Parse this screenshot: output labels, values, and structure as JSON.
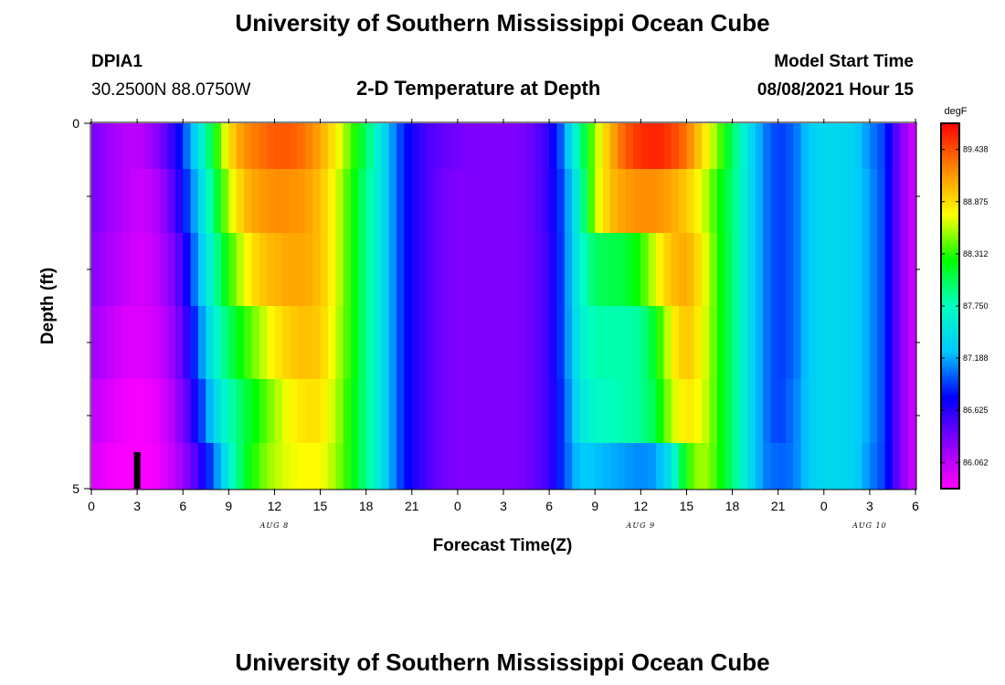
{
  "header": {
    "title": "University of Southern Mississippi Ocean Cube",
    "station": "DPIA1",
    "location": "30.2500N  88.0750W",
    "plot_title": "2-D Temperature at Depth",
    "model_start_label": "Model Start Time",
    "model_start_value": "08/08/2021 Hour 15"
  },
  "footer": {
    "title": "University of Southern Mississippi Ocean Cube"
  },
  "chart_data": {
    "type": "heatmap",
    "title": "2-D Temperature at Depth",
    "xlabel": "Forecast Time(Z)",
    "ylabel": "Depth (ft)",
    "colorbar_unit": "degF",
    "colorbar_ticks": [
      "89.438",
      "88.875",
      "88.312",
      "87.750",
      "87.188",
      "86.625",
      "86.062"
    ],
    "colorbar_range": [
      85.78,
      89.72
    ],
    "colors": [
      "#ff00ff",
      "#8800ff",
      "#0000ff",
      "#00c8ff",
      "#00ffc0",
      "#00ff00",
      "#ffff00",
      "#ff8800",
      "#ff0000"
    ],
    "x_tick_labels": [
      "0",
      "3",
      "6",
      "9",
      "12",
      "15",
      "18",
      "21",
      "0",
      "3",
      "6",
      "9",
      "12",
      "15",
      "18",
      "21",
      "0",
      "3",
      "6"
    ],
    "x_hours": [
      0,
      3,
      6,
      9,
      12,
      15,
      18,
      21,
      24,
      27,
      30,
      33,
      36,
      39,
      42,
      45,
      48,
      51,
      54
    ],
    "x_range": [
      0,
      54
    ],
    "day_labels": [
      {
        "text": "AUG 8",
        "hour": 12
      },
      {
        "text": "AUG 9",
        "hour": 36
      },
      {
        "text": "AUG 10",
        "hour": 51
      }
    ],
    "y_tick_labels": [
      "0",
      "5"
    ],
    "y_range": [
      0,
      5
    ],
    "y_minor_ticks": [
      1,
      2,
      3,
      4
    ],
    "marker": {
      "hour": 3,
      "depth_from": 4.5,
      "depth_to": 5
    },
    "depth_levels": [
      0.25,
      1.0,
      2.0,
      3.0,
      4.0,
      4.75
    ],
    "hours": [
      0,
      1,
      2,
      3,
      4,
      5,
      6,
      7,
      8,
      9,
      10,
      11,
      12,
      13,
      14,
      15,
      16,
      17,
      18,
      19,
      20,
      21,
      22,
      23,
      24,
      25,
      26,
      27,
      28,
      29,
      30,
      31,
      32,
      33,
      34,
      35,
      36,
      37,
      38,
      39,
      40,
      41,
      42,
      43,
      44,
      45,
      46,
      47,
      48,
      49,
      50,
      51,
      52,
      53,
      54
    ],
    "values": [
      [
        86.35,
        86.2,
        86.1,
        86.05,
        86.2,
        86.45,
        86.9,
        87.45,
        88.15,
        88.85,
        89.2,
        89.3,
        89.4,
        89.4,
        89.3,
        89.1,
        88.8,
        88.4,
        88.0,
        87.5,
        87.0,
        86.7,
        86.5,
        86.4,
        86.35,
        86.3,
        86.3,
        86.3,
        86.3,
        86.4,
        86.6,
        87.1,
        87.85,
        88.55,
        89.05,
        89.4,
        89.55,
        89.6,
        89.5,
        89.3,
        88.9,
        88.5,
        88.0,
        87.5,
        87.1,
        86.9,
        87.0,
        87.3,
        87.4,
        87.4,
        87.35,
        87.1,
        86.9,
        86.3,
        85.95
      ],
      [
        86.35,
        86.2,
        86.1,
        86.0,
        86.05,
        86.3,
        86.75,
        87.3,
        87.95,
        88.6,
        89.0,
        89.15,
        89.2,
        89.2,
        89.15,
        89.0,
        88.7,
        88.3,
        87.9,
        87.5,
        87.0,
        86.7,
        86.5,
        86.35,
        86.3,
        86.3,
        86.3,
        86.3,
        86.3,
        86.4,
        86.6,
        87.0,
        87.7,
        88.6,
        89.0,
        89.15,
        89.2,
        89.2,
        89.1,
        88.95,
        88.7,
        88.3,
        87.95,
        87.5,
        87.1,
        86.9,
        87.0,
        87.3,
        87.4,
        87.4,
        87.35,
        87.15,
        86.9,
        86.3,
        85.95
      ],
      [
        86.3,
        86.15,
        86.05,
        85.95,
        86.0,
        86.2,
        86.55,
        87.2,
        87.75,
        88.3,
        88.7,
        88.95,
        89.05,
        89.1,
        89.1,
        89.0,
        88.7,
        88.3,
        87.9,
        87.5,
        87.0,
        86.7,
        86.5,
        86.35,
        86.3,
        86.3,
        86.3,
        86.3,
        86.3,
        86.4,
        86.55,
        87.0,
        87.65,
        88.0,
        88.05,
        88.1,
        88.3,
        88.7,
        89.0,
        89.1,
        88.8,
        88.35,
        87.95,
        87.5,
        87.1,
        86.9,
        87.0,
        87.3,
        87.4,
        87.4,
        87.35,
        87.15,
        86.9,
        86.3,
        85.95
      ],
      [
        86.2,
        86.05,
        85.95,
        85.9,
        85.95,
        86.1,
        86.45,
        87.0,
        87.6,
        88.0,
        88.3,
        88.55,
        88.8,
        88.95,
        89.0,
        88.95,
        88.65,
        88.3,
        87.9,
        87.5,
        87.0,
        86.7,
        86.5,
        86.35,
        86.3,
        86.3,
        86.3,
        86.3,
        86.3,
        86.4,
        86.55,
        87.0,
        87.6,
        87.8,
        87.8,
        87.8,
        87.85,
        88.2,
        88.75,
        89.0,
        88.75,
        88.35,
        87.95,
        87.5,
        87.1,
        86.9,
        87.0,
        87.3,
        87.4,
        87.4,
        87.35,
        87.15,
        86.9,
        86.3,
        85.95
      ],
      [
        86.05,
        85.95,
        85.85,
        85.8,
        85.85,
        86.0,
        86.3,
        86.8,
        87.35,
        87.75,
        88.05,
        88.3,
        88.55,
        88.75,
        88.85,
        88.85,
        88.6,
        88.25,
        87.9,
        87.5,
        87.0,
        86.7,
        86.5,
        86.35,
        86.3,
        86.3,
        86.3,
        86.3,
        86.3,
        86.4,
        86.55,
        86.95,
        87.5,
        87.7,
        87.75,
        87.8,
        87.85,
        88.1,
        88.6,
        88.85,
        88.7,
        88.35,
        87.95,
        87.5,
        87.1,
        86.9,
        87.05,
        87.3,
        87.4,
        87.4,
        87.35,
        87.15,
        86.9,
        86.3,
        85.95
      ],
      [
        85.95,
        85.85,
        85.8,
        85.8,
        85.8,
        85.95,
        86.2,
        86.55,
        87.0,
        87.6,
        88.1,
        88.4,
        88.6,
        88.7,
        88.75,
        88.75,
        88.55,
        88.25,
        87.9,
        87.5,
        87.0,
        86.7,
        86.5,
        86.35,
        86.3,
        86.3,
        86.3,
        86.3,
        86.3,
        86.4,
        86.55,
        86.95,
        87.3,
        87.25,
        87.2,
        87.15,
        87.1,
        87.15,
        87.5,
        88.3,
        88.6,
        88.35,
        87.95,
        87.5,
        87.1,
        87.0,
        87.05,
        87.3,
        87.4,
        87.4,
        87.35,
        87.1,
        86.9,
        86.3,
        85.95
      ]
    ]
  }
}
